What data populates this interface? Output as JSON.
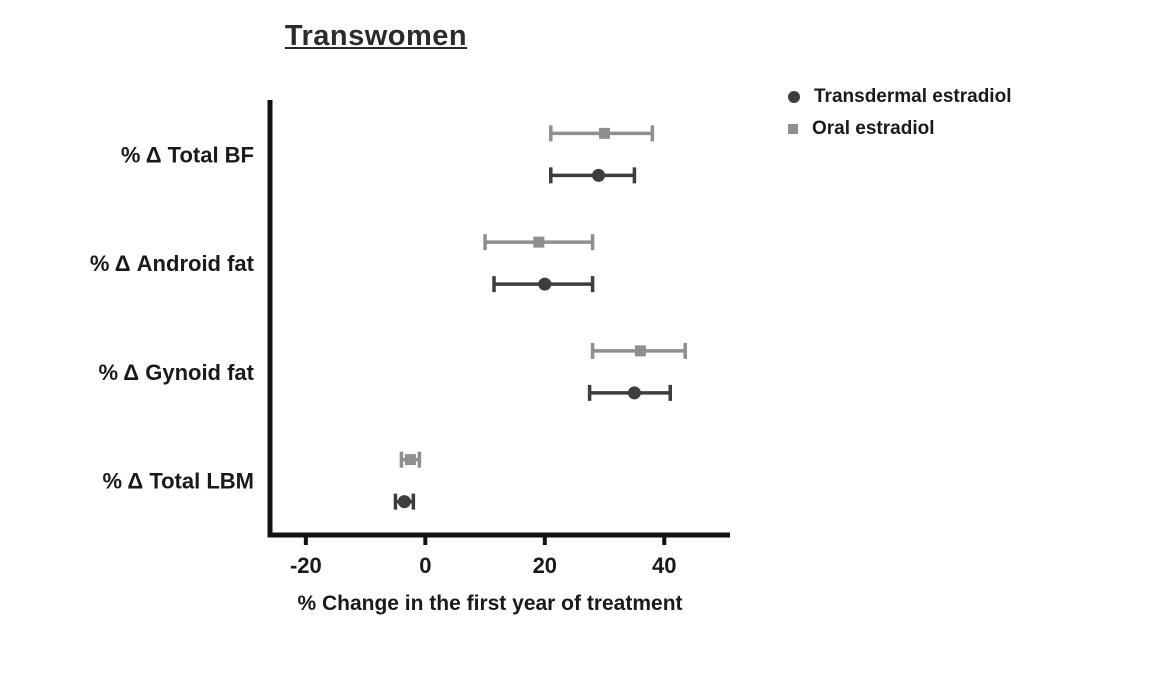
{
  "title": "Transwomen",
  "xlabel": "% Change in the first year of treatment",
  "chart_data": {
    "type": "scatter",
    "subtype": "forest-plot-with-error-bars",
    "orientation": "horizontal",
    "title": "Transwomen",
    "xlabel": "% Change in the first year of treatment",
    "categories": [
      "% Δ Total BF",
      "% Δ Android fat",
      "% Δ Gynoid fat",
      "% Δ Total LBM"
    ],
    "x_ticks": [
      -20,
      0,
      20,
      40
    ],
    "xlim": [
      -26,
      51
    ],
    "grid": false,
    "legend_position": "top-right",
    "axis_color": "#111111",
    "series": [
      {
        "name": "Transdermal estradiol",
        "marker": "circle",
        "color": "#3d3d3d",
        "values": [
          29,
          20,
          35,
          -3.5
        ],
        "ci_low": [
          21,
          11.5,
          27.5,
          -5
        ],
        "ci_high": [
          35,
          28,
          41,
          -2
        ]
      },
      {
        "name": "Oral estradiol",
        "marker": "square",
        "color": "#8f8f8f",
        "values": [
          30,
          19,
          36,
          -2.5
        ],
        "ci_low": [
          21,
          10,
          28,
          -4
        ],
        "ci_high": [
          38,
          28,
          43.5,
          -1
        ]
      }
    ]
  }
}
